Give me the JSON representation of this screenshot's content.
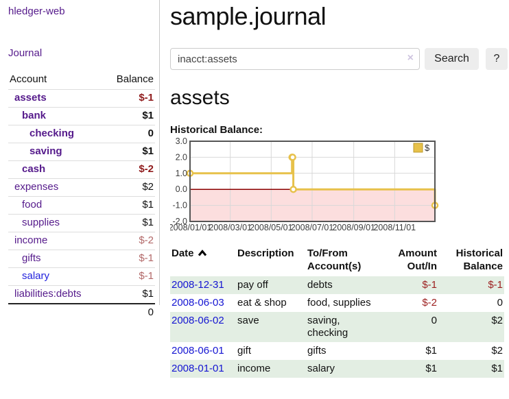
{
  "sidebar": {
    "brand": "hledger-web",
    "nav": {
      "journal_label": "Journal"
    },
    "accounts_table": {
      "headers": {
        "account": "Account",
        "balance": "Balance"
      },
      "rows": [
        {
          "name": "assets",
          "depth": 0,
          "matched": true,
          "balance": "$-1",
          "neg": "strong"
        },
        {
          "name": "bank",
          "depth": 1,
          "matched": true,
          "balance": "$1",
          "neg": "none"
        },
        {
          "name": "checking",
          "depth": 2,
          "matched": true,
          "balance": "0",
          "neg": "none"
        },
        {
          "name": "saving",
          "depth": 2,
          "matched": true,
          "balance": "$1",
          "neg": "none"
        },
        {
          "name": "cash",
          "depth": 1,
          "matched": true,
          "balance": "$-2",
          "neg": "strong"
        },
        {
          "name": "expenses",
          "depth": 0,
          "matched": false,
          "balance": "$2",
          "neg": "none"
        },
        {
          "name": "food",
          "depth": 1,
          "matched": false,
          "balance": "$1",
          "neg": "none"
        },
        {
          "name": "supplies",
          "depth": 1,
          "matched": false,
          "balance": "$1",
          "neg": "none"
        },
        {
          "name": "income",
          "depth": 0,
          "matched": false,
          "balance": "$-2",
          "neg": "soft"
        },
        {
          "name": "gifts",
          "depth": 1,
          "matched": false,
          "balance": "$-1",
          "neg": "soft"
        },
        {
          "name": "salary",
          "depth": 1,
          "matched": false,
          "balance": "$-1",
          "neg": "soft",
          "link_style": "unvisited"
        },
        {
          "name": "liabilities:debts",
          "depth": 0,
          "matched": false,
          "balance": "$1",
          "neg": "none"
        }
      ],
      "total": "0"
    }
  },
  "header": {
    "title": "sample.journal"
  },
  "search": {
    "value": "inacct:assets",
    "clear_icon": "×",
    "button_label": "Search",
    "help_label": "?"
  },
  "account_page": {
    "heading": "assets",
    "chart_label": "Historical Balance:"
  },
  "chart_data": {
    "type": "line",
    "title": "Historical Balance:",
    "step": true,
    "xlim": [
      "2008-01-01",
      "2008-12-31"
    ],
    "ylim": [
      -2,
      3
    ],
    "y_ticks": [
      3.0,
      2.0,
      1.0,
      0.0,
      -1.0,
      -2.0
    ],
    "x_ticks": [
      {
        "date": "2008-01-01",
        "label": "2008/01/01"
      },
      {
        "date": "2008-03-01",
        "label": "2008/03/01"
      },
      {
        "date": "2008-05-01",
        "label": "2008/05/01"
      },
      {
        "date": "2008-07-01",
        "label": "2008/07/01"
      },
      {
        "date": "2008-09-01",
        "label": "2008/09/01"
      },
      {
        "date": "2008-11-01",
        "label": "2008/11/01"
      }
    ],
    "series": [
      {
        "name": "$",
        "color": "#e7c14a",
        "points": [
          [
            "2008-01-01",
            1
          ],
          [
            "2008-06-01",
            2
          ],
          [
            "2008-06-02",
            2
          ],
          [
            "2008-06-03",
            0
          ],
          [
            "2008-12-31",
            -1
          ]
        ]
      }
    ],
    "legend": {
      "label": "$",
      "position": "top-right"
    },
    "grid": true,
    "negative_region_fill": "#fcdede",
    "zero_line_color": "#8b0000",
    "border_color": "#555555"
  },
  "register": {
    "headers": {
      "date": "Date",
      "description": "Description",
      "accounts": "To/From Account(s)",
      "amount": "Amount Out/In",
      "balance": "Historical Balance"
    },
    "rows": [
      {
        "date": "2008-12-31",
        "description": "pay off",
        "accounts": "debts",
        "amount": "$-1",
        "amount_neg": true,
        "balance": "$-1",
        "balance_neg": true
      },
      {
        "date": "2008-06-03",
        "description": "eat & shop",
        "accounts": "food, supplies",
        "amount": "$-2",
        "amount_neg": true,
        "balance": "0",
        "balance_neg": false
      },
      {
        "date": "2008-06-02",
        "description": "save",
        "accounts": "saving, checking",
        "amount": "0",
        "amount_neg": false,
        "balance": "$2",
        "balance_neg": false
      },
      {
        "date": "2008-06-01",
        "description": "gift",
        "accounts": "gifts",
        "amount": "$1",
        "amount_neg": false,
        "balance": "$2",
        "balance_neg": false
      },
      {
        "date": "2008-01-01",
        "description": "income",
        "accounts": "salary",
        "amount": "$1",
        "amount_neg": false,
        "balance": "$1",
        "balance_neg": false
      }
    ]
  }
}
